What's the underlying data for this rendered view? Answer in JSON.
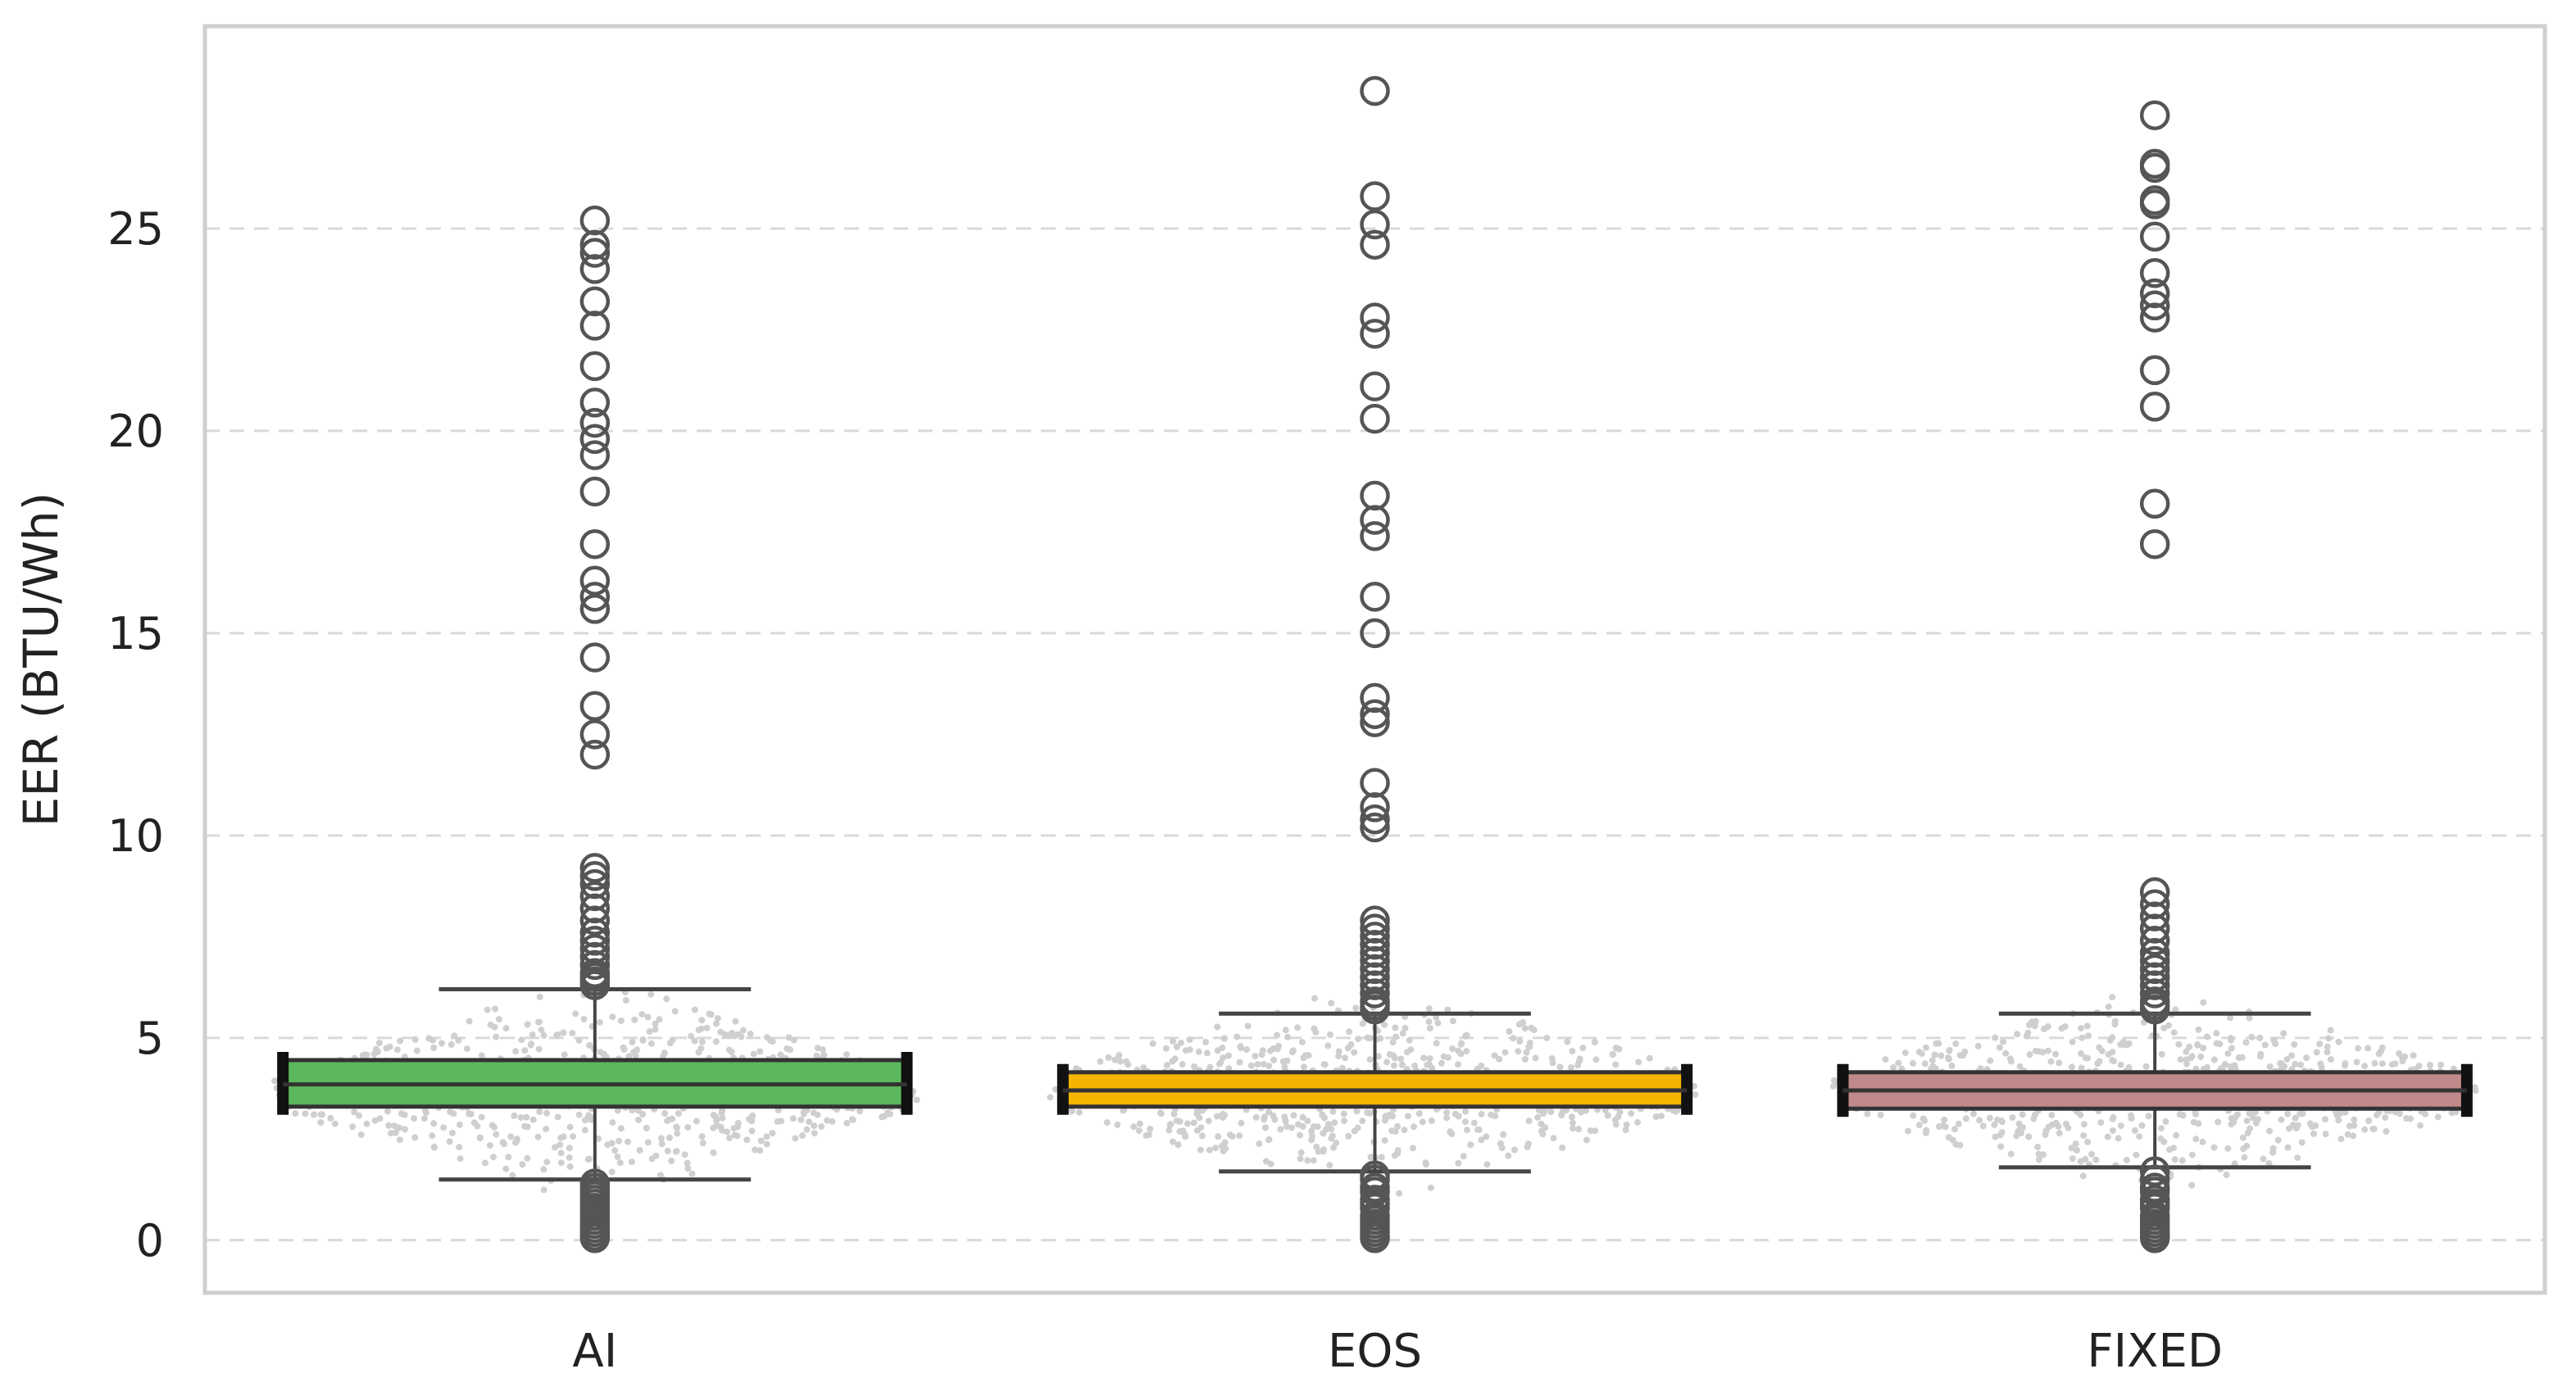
{
  "chart_data": {
    "type": "box",
    "title": "",
    "xlabel": "",
    "ylabel": "EER (BTU/Wh)",
    "ylim": [
      -1.3,
      30
    ],
    "yticks": [
      0,
      5,
      10,
      15,
      20,
      25
    ],
    "grid": {
      "y": true,
      "x": false,
      "style": "dashed"
    },
    "categories": [
      "AI",
      "EOS",
      "FIXED"
    ],
    "series": [
      {
        "category": "AI",
        "color": "#5cb85c",
        "whisker_low": 1.5,
        "q1": 3.3,
        "median": 3.85,
        "q3": 4.45,
        "whisker_high": 6.2,
        "outliers": [
          25.2,
          24.6,
          24.4,
          24.0,
          23.2,
          22.6,
          21.6,
          20.7,
          20.2,
          19.8,
          19.4,
          18.5,
          17.2,
          16.3,
          15.9,
          15.6,
          14.4,
          13.2,
          12.5,
          12.0,
          9.2,
          9.0,
          8.8,
          8.5,
          8.2,
          7.9,
          7.6,
          7.4,
          7.2,
          7.0,
          6.8,
          6.6,
          6.5,
          6.4,
          6.3,
          1.4,
          1.3,
          1.2,
          1.1,
          1.0,
          0.9,
          0.8,
          0.7,
          0.6,
          0.5,
          0.4,
          0.3,
          0.2,
          0.1,
          0.05
        ]
      },
      {
        "category": "EOS",
        "color": "#f5b400",
        "whisker_low": 1.7,
        "q1": 3.3,
        "median": 3.7,
        "q3": 4.15,
        "whisker_high": 5.6,
        "outliers": [
          28.4,
          25.8,
          25.1,
          24.6,
          22.8,
          22.4,
          21.1,
          20.3,
          18.4,
          17.8,
          17.4,
          15.9,
          15.0,
          13.4,
          13.0,
          12.8,
          11.3,
          10.7,
          10.4,
          10.2,
          7.9,
          7.7,
          7.5,
          7.3,
          7.1,
          6.9,
          6.7,
          6.5,
          6.3,
          6.1,
          5.9,
          5.8,
          5.7,
          1.6,
          1.5,
          1.3,
          1.2,
          1.0,
          0.9,
          0.8,
          0.6,
          0.5,
          0.4,
          0.3,
          0.2,
          0.1,
          0.05
        ]
      },
      {
        "category": "FIXED",
        "color": "#c08a8a",
        "whisker_low": 1.8,
        "q1": 3.25,
        "median": 3.7,
        "q3": 4.15,
        "whisker_high": 5.6,
        "outliers": [
          27.8,
          26.6,
          26.5,
          25.7,
          25.6,
          24.8,
          23.9,
          23.4,
          23.1,
          22.8,
          21.5,
          20.6,
          18.2,
          17.2,
          8.6,
          8.3,
          8.0,
          7.7,
          7.4,
          7.1,
          6.9,
          6.7,
          6.5,
          6.3,
          6.1,
          5.9,
          5.8,
          5.7,
          1.7,
          1.5,
          1.3,
          1.2,
          1.0,
          0.9,
          0.8,
          0.6,
          0.5,
          0.4,
          0.3,
          0.2,
          0.1,
          0.05
        ]
      }
    ],
    "swarm": {
      "color": "#cfcfcf",
      "distribution_center": [
        3.7,
        3.7,
        3.7
      ]
    }
  }
}
